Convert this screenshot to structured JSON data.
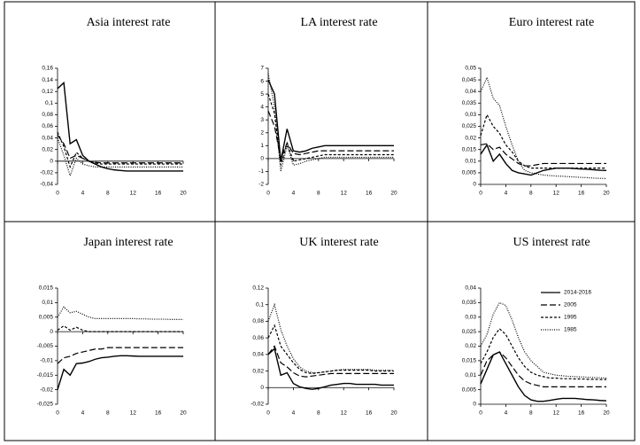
{
  "chart_data": [
    {
      "type": "line",
      "title": "Asia interest rate",
      "x": [
        0,
        1,
        2,
        3,
        4,
        5,
        6,
        7,
        8,
        9,
        10,
        11,
        12,
        13,
        14,
        15,
        16,
        17,
        18,
        19,
        20
      ],
      "xlim": [
        0,
        20
      ],
      "xticks": [
        0,
        4,
        8,
        12,
        16,
        20
      ],
      "ylim": [
        -0.04,
        0.16
      ],
      "yticks": [
        {
          "value": -0.04,
          "label": "-0,04"
        },
        {
          "value": -0.02,
          "label": "-0,02"
        },
        0,
        {
          "value": 0.02,
          "label": "0,02"
        },
        {
          "value": 0.04,
          "label": "0,04"
        },
        {
          "value": 0.06,
          "label": "0,06"
        },
        {
          "value": 0.08,
          "label": "0,08"
        },
        {
          "value": 0.1,
          "label": "0,1"
        },
        {
          "value": 0.12,
          "label": "0,12"
        },
        {
          "value": 0.14,
          "label": "0,14"
        },
        {
          "value": 0.16,
          "label": "0,16"
        }
      ],
      "series": [
        {
          "color": "#000000",
          "dash": "solid",
          "values": [
            0.125,
            0.135,
            0.03,
            0.037,
            0.01,
            0,
            -0.005,
            -0.01,
            -0.013,
            -0.015,
            -0.016,
            -0.017,
            -0.017,
            -0.017,
            -0.017,
            -0.017,
            -0.017,
            -0.017,
            -0.017,
            -0.017,
            -0.017
          ]
        },
        {
          "color": "#000000",
          "dash": "long-dash",
          "values": [
            0.045,
            0.03,
            0.005,
            0.01,
            0.005,
            0,
            -0.002,
            -0.003,
            -0.003,
            -0.003,
            -0.003,
            -0.003,
            -0.003,
            -0.003,
            -0.003,
            -0.003,
            -0.003,
            -0.003,
            -0.003,
            -0.003,
            -0.003
          ]
        },
        {
          "color": "#000000",
          "dash": "dash",
          "values": [
            0.05,
            0.025,
            -0.01,
            0.015,
            0.005,
            0,
            -0.003,
            -0.005,
            -0.005,
            -0.005,
            -0.005,
            -0.005,
            -0.005,
            -0.005,
            -0.005,
            -0.005,
            -0.005,
            -0.005,
            -0.005,
            -0.005,
            -0.005
          ]
        },
        {
          "color": "#000000",
          "dash": "dot",
          "values": [
            0.04,
            0.01,
            -0.025,
            0.005,
            -0.005,
            -0.008,
            -0.01,
            -0.01,
            -0.01,
            -0.01,
            -0.01,
            -0.01,
            -0.01,
            -0.01,
            -0.01,
            -0.01,
            -0.01,
            -0.01,
            -0.01,
            -0.01,
            -0.01
          ]
        }
      ]
    },
    {
      "type": "line",
      "title": "LA interest rate",
      "x": [
        0,
        1,
        2,
        3,
        4,
        5,
        6,
        7,
        8,
        9,
        10,
        11,
        12,
        13,
        14,
        15,
        16,
        17,
        18,
        19,
        20
      ],
      "xlim": [
        0,
        20
      ],
      "xticks": [
        0,
        4,
        8,
        12,
        16,
        20
      ],
      "ylim": [
        -2,
        7
      ],
      "yticks": [
        -2,
        -1,
        0,
        1,
        2,
        3,
        4,
        5,
        6,
        7
      ],
      "series": [
        {
          "color": "#000000",
          "dash": "solid",
          "values": [
            6.1,
            5.0,
            -0.2,
            2.3,
            0.6,
            0.5,
            0.6,
            0.8,
            0.9,
            1.0,
            1.0,
            1.0,
            1.0,
            1.0,
            1.0,
            1.0,
            1.0,
            1.0,
            1.0,
            1.0,
            1.0
          ]
        },
        {
          "color": "#000000",
          "dash": "long-dash",
          "values": [
            3.7,
            2.5,
            0,
            1.2,
            0.4,
            0.3,
            0.4,
            0.5,
            0.6,
            0.6,
            0.6,
            0.6,
            0.6,
            0.6,
            0.6,
            0.6,
            0.6,
            0.6,
            0.6,
            0.6,
            0.6
          ]
        },
        {
          "color": "#000000",
          "dash": "dash",
          "values": [
            5.0,
            3.5,
            -0.5,
            1.2,
            -0.2,
            -0.1,
            0,
            0.1,
            0.2,
            0.3,
            0.3,
            0.3,
            0.3,
            0.3,
            0.3,
            0.3,
            0.3,
            0.3,
            0.3,
            0.3,
            0.3
          ]
        },
        {
          "color": "#000000",
          "dash": "dot",
          "values": [
            6.6,
            4.0,
            -1.0,
            1.0,
            -0.5,
            -0.4,
            -0.2,
            -0.1,
            0,
            0.1,
            0.1,
            0.1,
            0.1,
            0.1,
            0.1,
            0.1,
            0.1,
            0.1,
            0.1,
            0.1,
            0.1
          ]
        }
      ]
    },
    {
      "type": "line",
      "title": "Euro interest rate",
      "x": [
        0,
        1,
        2,
        3,
        4,
        5,
        6,
        7,
        8,
        9,
        10,
        11,
        12,
        13,
        14,
        15,
        16,
        17,
        18,
        19,
        20
      ],
      "xlim": [
        0,
        20
      ],
      "xticks": [
        0,
        4,
        8,
        12,
        16,
        20
      ],
      "ylim": [
        0,
        0.05
      ],
      "yticks": [
        0,
        {
          "value": 0.005,
          "label": "0,005"
        },
        {
          "value": 0.01,
          "label": "0,01"
        },
        {
          "value": 0.015,
          "label": "0,015"
        },
        {
          "value": 0.02,
          "label": "0,02"
        },
        {
          "value": 0.025,
          "label": "0,025"
        },
        {
          "value": 0.03,
          "label": "0,03"
        },
        {
          "value": 0.035,
          "label": "0,035"
        },
        {
          "value": 0.04,
          "label": "0,04"
        },
        {
          "value": 0.045,
          "label": "0,045"
        },
        {
          "value": 0.05,
          "label": "0,05"
        }
      ],
      "series": [
        {
          "color": "#000000",
          "dash": "solid",
          "values": [
            0.013,
            0.017,
            0.01,
            0.013,
            0.009,
            0.006,
            0.005,
            0.0045,
            0.004,
            0.005,
            0.006,
            0.0065,
            0.007,
            0.007,
            0.007,
            0.0068,
            0.0066,
            0.0065,
            0.0063,
            0.0061,
            0.006
          ]
        },
        {
          "color": "#000000",
          "dash": "long-dash",
          "values": [
            0.017,
            0.0175,
            0.015,
            0.016,
            0.013,
            0.011,
            0.009,
            0.008,
            0.008,
            0.0085,
            0.009,
            0.009,
            0.009,
            0.009,
            0.009,
            0.009,
            0.009,
            0.009,
            0.009,
            0.009,
            0.009
          ]
        },
        {
          "color": "#000000",
          "dash": "dash",
          "values": [
            0.021,
            0.03,
            0.025,
            0.022,
            0.017,
            0.014,
            0.01,
            0.008,
            0.007,
            0.007,
            0.007,
            0.007,
            0.007,
            0.007,
            0.007,
            0.007,
            0.007,
            0.007,
            0.007,
            0.007,
            0.007
          ]
        },
        {
          "color": "#000000",
          "dash": "dot",
          "values": [
            0.04,
            0.046,
            0.037,
            0.034,
            0.025,
            0.017,
            0.01,
            0.006,
            0.005,
            0.0045,
            0.004,
            0.0038,
            0.0036,
            0.0035,
            0.0033,
            0.0032,
            0.003,
            0.0029,
            0.0027,
            0.0026,
            0.0025
          ]
        }
      ]
    },
    {
      "type": "line",
      "title": "Japan interest rate",
      "x": [
        0,
        1,
        2,
        3,
        4,
        5,
        6,
        7,
        8,
        9,
        10,
        11,
        12,
        13,
        14,
        15,
        16,
        17,
        18,
        19,
        20
      ],
      "xlim": [
        0,
        20
      ],
      "xticks": [
        0,
        4,
        8,
        12,
        16,
        20
      ],
      "ylim": [
        -0.025,
        0.015
      ],
      "yticks": [
        {
          "value": -0.025,
          "label": "-0,025"
        },
        {
          "value": -0.02,
          "label": "-0,02"
        },
        {
          "value": -0.015,
          "label": "-0,015"
        },
        {
          "value": -0.01,
          "label": "-0,01"
        },
        {
          "value": -0.005,
          "label": "-0,005"
        },
        0,
        {
          "value": 0.005,
          "label": "0,005"
        },
        {
          "value": 0.01,
          "label": "0,01"
        },
        {
          "value": 0.015,
          "label": "0,015"
        }
      ],
      "series": [
        {
          "color": "#000000",
          "dash": "solid",
          "values": [
            -0.02,
            -0.013,
            -0.015,
            -0.011,
            -0.0108,
            -0.0103,
            -0.0095,
            -0.009,
            -0.0088,
            -0.0085,
            -0.0083,
            -0.0083,
            -0.0084,
            -0.0085,
            -0.0085,
            -0.0085,
            -0.0085,
            -0.0085,
            -0.0085,
            -0.0085,
            -0.0085
          ]
        },
        {
          "color": "#000000",
          "dash": "long-dash",
          "values": [
            -0.011,
            -0.009,
            -0.0085,
            -0.0075,
            -0.007,
            -0.0065,
            -0.006,
            -0.006,
            -0.0055,
            -0.0055,
            -0.0055,
            -0.0055,
            -0.0055,
            -0.0055,
            -0.0055,
            -0.0055,
            -0.0055,
            -0.0055,
            -0.0055,
            -0.0055,
            -0.0055
          ]
        },
        {
          "color": "#000000",
          "dash": "dash",
          "values": [
            0.0005,
            0.002,
            0.0005,
            0.0015,
            0.0005,
            0,
            0,
            0,
            0,
            0,
            0,
            0,
            0,
            0,
            0,
            0,
            0,
            0,
            0,
            0,
            0
          ]
        },
        {
          "color": "#000000",
          "dash": "dot",
          "values": [
            0.005,
            0.0085,
            0.0065,
            0.007,
            0.006,
            0.005,
            0.0045,
            0.0045,
            0.0045,
            0.0045,
            0.0045,
            0.0045,
            0.0045,
            0.0044,
            0.0044,
            0.0043,
            0.0043,
            0.0043,
            0.0042,
            0.0042,
            0.0042
          ]
        }
      ]
    },
    {
      "type": "line",
      "title": "UK interest rate",
      "x": [
        0,
        1,
        2,
        3,
        4,
        5,
        6,
        7,
        8,
        9,
        10,
        11,
        12,
        13,
        14,
        15,
        16,
        17,
        18,
        19,
        20
      ],
      "xlim": [
        0,
        20
      ],
      "xticks": [
        0,
        4,
        8,
        12,
        16,
        20
      ],
      "ylim": [
        -0.02,
        0.12
      ],
      "yticks": [
        {
          "value": -0.02,
          "label": "-0,02"
        },
        0,
        {
          "value": 0.02,
          "label": "0,02"
        },
        {
          "value": 0.04,
          "label": "0,04"
        },
        {
          "value": 0.06,
          "label": "0,06"
        },
        {
          "value": 0.08,
          "label": "0,08"
        },
        {
          "value": 0.1,
          "label": "0,1"
        },
        {
          "value": 0.12,
          "label": "0,12"
        }
      ],
      "series": [
        {
          "color": "#000000",
          "dash": "solid",
          "values": [
            0.04,
            0.047,
            0.015,
            0.018,
            0.005,
            0.001,
            -0.001,
            -0.002,
            -0.001,
            0.001,
            0.003,
            0.004,
            0.005,
            0.005,
            0.004,
            0.004,
            0.004,
            0.004,
            0.003,
            0.003,
            0.003
          ]
        },
        {
          "color": "#000000",
          "dash": "long-dash",
          "values": [
            0.04,
            0.05,
            0.03,
            0.025,
            0.018,
            0.014,
            0.013,
            0.014,
            0.015,
            0.016,
            0.017,
            0.017,
            0.017,
            0.017,
            0.017,
            0.017,
            0.017,
            0.017,
            0.017,
            0.017,
            0.017
          ]
        },
        {
          "color": "#000000",
          "dash": "dash",
          "values": [
            0.06,
            0.075,
            0.05,
            0.04,
            0.03,
            0.022,
            0.018,
            0.017,
            0.018,
            0.019,
            0.02,
            0.021,
            0.021,
            0.021,
            0.021,
            0.021,
            0.021,
            0.02,
            0.02,
            0.02,
            0.02
          ]
        },
        {
          "color": "#000000",
          "dash": "dot",
          "values": [
            0.08,
            0.1,
            0.07,
            0.05,
            0.035,
            0.025,
            0.02,
            0.018,
            0.018,
            0.019,
            0.02,
            0.021,
            0.022,
            0.022,
            0.022,
            0.022,
            0.022,
            0.021,
            0.021,
            0.021,
            0.021
          ]
        }
      ]
    },
    {
      "type": "line",
      "title": "US interest rate",
      "x": [
        0,
        1,
        2,
        3,
        4,
        5,
        6,
        7,
        8,
        9,
        10,
        11,
        12,
        13,
        14,
        15,
        16,
        17,
        18,
        19,
        20
      ],
      "xlim": [
        0,
        20
      ],
      "xticks": [
        0,
        4,
        8,
        12,
        16,
        20
      ],
      "ylim": [
        0,
        0.04
      ],
      "yticks": [
        0,
        {
          "value": 0.005,
          "label": "0,005"
        },
        {
          "value": 0.01,
          "label": "0,01"
        },
        {
          "value": 0.015,
          "label": "0,015"
        },
        {
          "value": 0.02,
          "label": "0,02"
        },
        {
          "value": 0.025,
          "label": "0,025"
        },
        {
          "value": 0.03,
          "label": "0,03"
        },
        {
          "value": 0.035,
          "label": "0,035"
        },
        {
          "value": 0.04,
          "label": "0,04"
        }
      ],
      "legend": "upper right",
      "series": [
        {
          "name": "2014-2016",
          "color": "#000000",
          "dash": "solid",
          "values": [
            0.007,
            0.012,
            0.017,
            0.018,
            0.014,
            0.01,
            0.006,
            0.003,
            0.0015,
            0.001,
            0.001,
            0.0013,
            0.0017,
            0.002,
            0.002,
            0.002,
            0.0018,
            0.0016,
            0.0015,
            0.0013,
            0.0012
          ]
        },
        {
          "name": "2005",
          "color": "#000000",
          "dash": "long-dash",
          "values": [
            0.01,
            0.015,
            0.017,
            0.018,
            0.016,
            0.013,
            0.01,
            0.008,
            0.007,
            0.0065,
            0.006,
            0.006,
            0.006,
            0.006,
            0.006,
            0.006,
            0.006,
            0.006,
            0.006,
            0.006,
            0.006
          ]
        },
        {
          "name": "1995",
          "color": "#000000",
          "dash": "dash",
          "values": [
            0.014,
            0.018,
            0.023,
            0.026,
            0.024,
            0.02,
            0.016,
            0.013,
            0.011,
            0.01,
            0.0095,
            0.009,
            0.009,
            0.0088,
            0.0088,
            0.0087,
            0.0087,
            0.0086,
            0.0086,
            0.0085,
            0.0085
          ]
        },
        {
          "name": "1985",
          "color": "#000000",
          "dash": "dot",
          "values": [
            0.02,
            0.024,
            0.031,
            0.035,
            0.034,
            0.029,
            0.023,
            0.018,
            0.015,
            0.013,
            0.011,
            0.0105,
            0.01,
            0.0098,
            0.0096,
            0.0095,
            0.0094,
            0.0093,
            0.0092,
            0.0091,
            0.009
          ]
        }
      ]
    }
  ]
}
